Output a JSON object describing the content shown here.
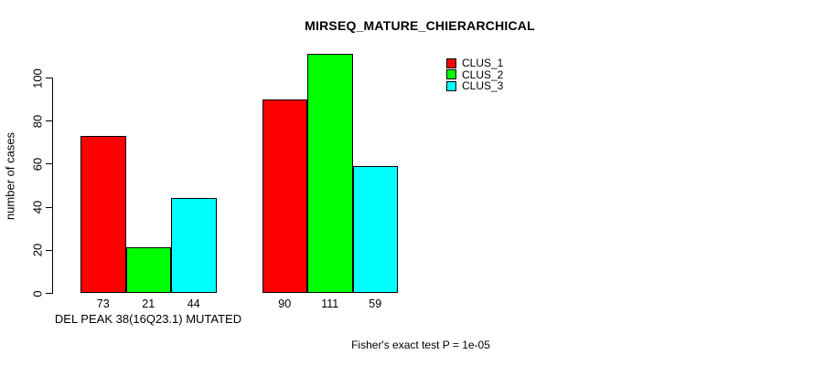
{
  "chart_data": {
    "type": "bar",
    "title": "MIRSEQ_MATURE_CHIERARCHICAL",
    "ylabel": "number of cases",
    "xlabel": "DEL PEAK 38(16Q23.1) MUTATED",
    "annotation": "Fisher's exact test P = 1e-05",
    "groups": [
      "DEL PEAK 38(16Q23.1) MUTATED",
      ""
    ],
    "series": [
      {
        "name": "CLUS_1",
        "color": "#ff0000",
        "values": [
          73,
          90
        ]
      },
      {
        "name": "CLUS_2",
        "color": "#00ff00",
        "values": [
          21,
          111
        ]
      },
      {
        "name": "CLUS_3",
        "color": "#00ffff",
        "values": [
          44,
          59
        ]
      }
    ],
    "bar_value_labels": [
      [
        73,
        21,
        44
      ],
      [
        90,
        111,
        59
      ]
    ],
    "yticks": [
      0,
      20,
      40,
      60,
      80,
      100
    ],
    "ylim": [
      0,
      113
    ],
    "grid": false,
    "legend_position": "top-right",
    "bar_border_color": "#000000",
    "background_color": "#ffffff"
  }
}
